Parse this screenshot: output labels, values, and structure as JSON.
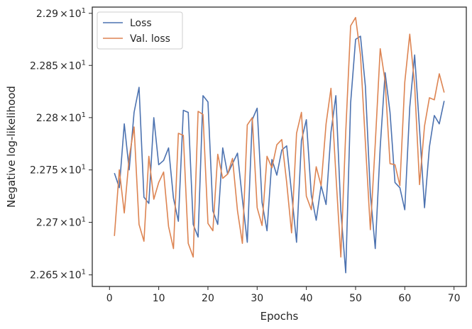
{
  "chart_data": {
    "type": "line",
    "title": "",
    "xlabel": "Epochs",
    "ylabel": "Negative log-likelihood",
    "xlim": [
      -3.5,
      72.5
    ],
    "ylim": [
      22.639,
      22.906
    ],
    "yscale": "log",
    "grid": false,
    "legend_position": "top-left",
    "x_ticks": [
      0,
      10,
      20,
      30,
      40,
      50,
      60,
      70
    ],
    "y_ticks": [
      {
        "value": 22.65,
        "mantissa": "2.265",
        "times": "×",
        "base": "10",
        "exponent": "1"
      },
      {
        "value": 22.7,
        "mantissa": "2.27",
        "times": "×",
        "base": "10",
        "exponent": "1"
      },
      {
        "value": 22.75,
        "mantissa": "2.275",
        "times": "×",
        "base": "10",
        "exponent": "1"
      },
      {
        "value": 22.8,
        "mantissa": "2.28",
        "times": "×",
        "base": "10",
        "exponent": "1"
      },
      {
        "value": 22.85,
        "mantissa": "2.285",
        "times": "×",
        "base": "10",
        "exponent": "1"
      },
      {
        "value": 22.9,
        "mantissa": "2.29",
        "times": "×",
        "base": "10",
        "exponent": "1"
      }
    ],
    "x": [
      1,
      2,
      3,
      4,
      5,
      6,
      7,
      8,
      9,
      10,
      11,
      12,
      13,
      14,
      15,
      16,
      17,
      18,
      19,
      20,
      21,
      22,
      23,
      24,
      25,
      26,
      27,
      28,
      29,
      30,
      31,
      32,
      33,
      34,
      35,
      36,
      37,
      38,
      39,
      40,
      41,
      42,
      43,
      44,
      45,
      46,
      47,
      48,
      49,
      50,
      51,
      52,
      53,
      54,
      55,
      56,
      57,
      58,
      59,
      60,
      61,
      62,
      63,
      64,
      65,
      66,
      67,
      68
    ],
    "series": [
      {
        "name": "Loss",
        "color": "#4c72b0",
        "values": [
          22.747,
          22.733,
          22.794,
          22.75,
          22.805,
          22.829,
          22.724,
          22.718,
          22.8,
          22.755,
          22.759,
          22.771,
          22.723,
          22.701,
          22.807,
          22.805,
          22.698,
          22.686,
          22.821,
          22.815,
          22.711,
          22.698,
          22.771,
          22.746,
          22.756,
          22.766,
          22.722,
          22.681,
          22.798,
          22.809,
          22.719,
          22.692,
          22.76,
          22.745,
          22.769,
          22.773,
          22.728,
          22.681,
          22.778,
          22.798,
          22.726,
          22.702,
          22.735,
          22.717,
          22.786,
          22.821,
          22.711,
          22.652,
          22.814,
          22.875,
          22.878,
          22.83,
          22.727,
          22.675,
          22.772,
          22.843,
          22.805,
          22.738,
          22.733,
          22.712,
          22.81,
          22.86,
          22.789,
          22.714,
          22.772,
          22.802,
          22.794,
          22.816
        ]
      },
      {
        "name": "Val. loss",
        "color": "#dd8452",
        "values": [
          22.687,
          22.75,
          22.709,
          22.762,
          22.791,
          22.698,
          22.682,
          22.763,
          22.722,
          22.738,
          22.748,
          22.696,
          22.675,
          22.785,
          22.783,
          22.68,
          22.667,
          22.806,
          22.803,
          22.699,
          22.692,
          22.765,
          22.742,
          22.746,
          22.761,
          22.711,
          22.68,
          22.793,
          22.8,
          22.714,
          22.697,
          22.763,
          22.752,
          22.774,
          22.779,
          22.738,
          22.69,
          22.785,
          22.805,
          22.725,
          22.712,
          22.753,
          22.735,
          22.794,
          22.828,
          22.746,
          22.667,
          22.786,
          22.888,
          22.896,
          22.86,
          22.776,
          22.693,
          22.775,
          22.866,
          22.835,
          22.756,
          22.755,
          22.735,
          22.834,
          22.88,
          22.831,
          22.736,
          22.792,
          22.819,
          22.817,
          22.842,
          22.824
        ]
      }
    ]
  }
}
